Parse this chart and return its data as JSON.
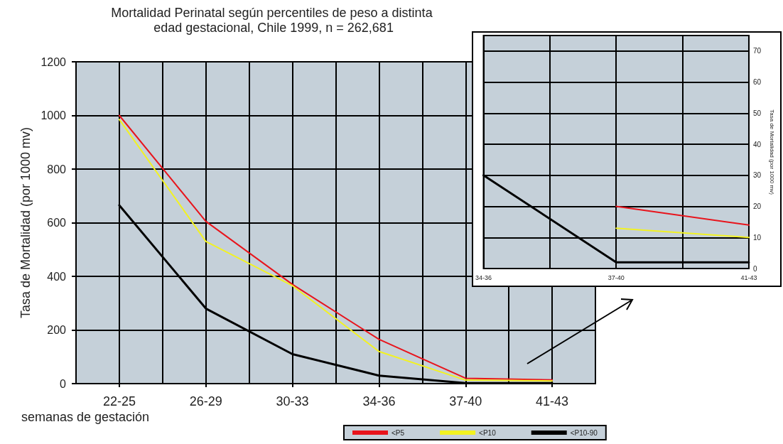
{
  "chart_data": [
    {
      "type": "line",
      "title": "Mortalidad Perinatal según percentiles de peso a distinta edad gestacional, Chile 1999, n = 262,681",
      "xlabel": "semanas de gestación",
      "ylabel": "Tasa de Mortalidad (por 1000 mv)",
      "categories": [
        "22-25",
        "26-29",
        "30-33",
        "34-36",
        "37-40",
        "41-43"
      ],
      "series": [
        {
          "name": "<P5",
          "color": "#e8141c",
          "values": [
            1000,
            605,
            370,
            165,
            20,
            14
          ]
        },
        {
          "name": "<P10",
          "color": "#f2f222",
          "values": [
            985,
            530,
            365,
            120,
            13,
            10
          ]
        },
        {
          "name": "<P10-90",
          "color": "#000000",
          "values": [
            665,
            280,
            110,
            30,
            2,
            2
          ]
        }
      ],
      "ylim": [
        0,
        1200
      ],
      "yticks": [
        0,
        200,
        400,
        600,
        800,
        {
          "value": 1000,
          "label": "1000"
        },
        {
          "value": 1200,
          "label": "1200"
        }
      ],
      "grid": true,
      "legend": "bottom",
      "marker": "none"
    },
    {
      "type": "line",
      "y2label": "Tasa de Mortalidad (por 1000 mv)",
      "categories": [
        "34-36",
        "37-40",
        "41-43"
      ],
      "series": [
        {
          "color": "#e8141c",
          "axis": "y2",
          "values": [
            null,
            20,
            14
          ]
        },
        {
          "color": "#f2f222",
          "axis": "y2",
          "values": [
            null,
            13,
            10
          ]
        },
        {
          "color": "#000000",
          "axis": "y2",
          "values": [
            30,
            2,
            2
          ]
        }
      ],
      "y2lim": [
        0,
        75
      ],
      "y2ticks": [
        0,
        10,
        20,
        30,
        40,
        50,
        60,
        70
      ],
      "grid": true,
      "marker": "none"
    }
  ]
}
